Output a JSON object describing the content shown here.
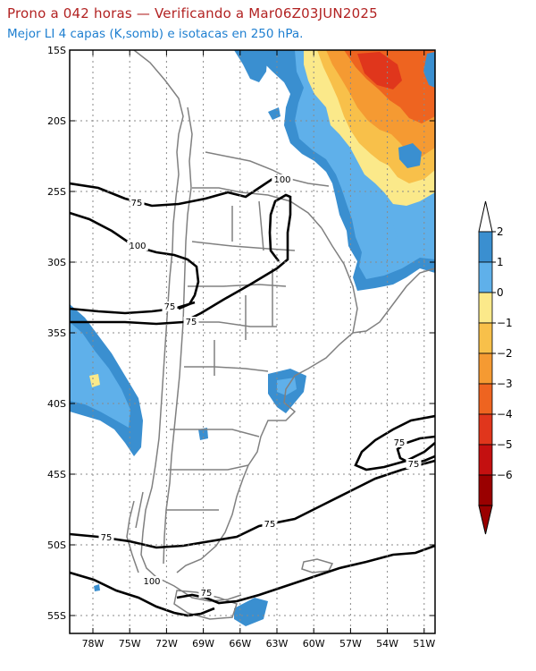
{
  "title": "Prono a 042 horas — Verificando a Mar06Z03JUN2025",
  "subtitle": "Mejor LI 4 capas (K,somb) e isotacas en 250 hPa.",
  "latitude_ticks": [
    "15S",
    "20S",
    "25S",
    "30S",
    "35S",
    "40S",
    "45S",
    "50S",
    "55S"
  ],
  "longitude_ticks": [
    "78W",
    "75W",
    "72W",
    "69W",
    "66W",
    "63W",
    "60W",
    "57W",
    "54W",
    "51W"
  ],
  "colorbar": {
    "labels": [
      "2",
      "1",
      "0",
      "−1",
      "−2",
      "−3",
      "−4",
      "−5",
      "−6"
    ],
    "colors": [
      "#3a8fd0",
      "#5fb0ea",
      "#fbe98a",
      "#f8c04a",
      "#f59a32",
      "#ee6420",
      "#e0361c",
      "#c41010",
      "#9a0000"
    ],
    "top_arrow_color": "#ffffff",
    "bottom_arrow_color": "#9a0000"
  },
  "isotach_labels": [
    "75",
    "100",
    "75",
    "100",
    "75",
    "75",
    "75",
    "75",
    "75",
    "100",
    "75"
  ],
  "colors": {
    "title": "#b22222",
    "subtitle": "#1e7fd0",
    "coastline": "#808080",
    "isotach": "#000000",
    "grid": "#8a8a8a"
  }
}
